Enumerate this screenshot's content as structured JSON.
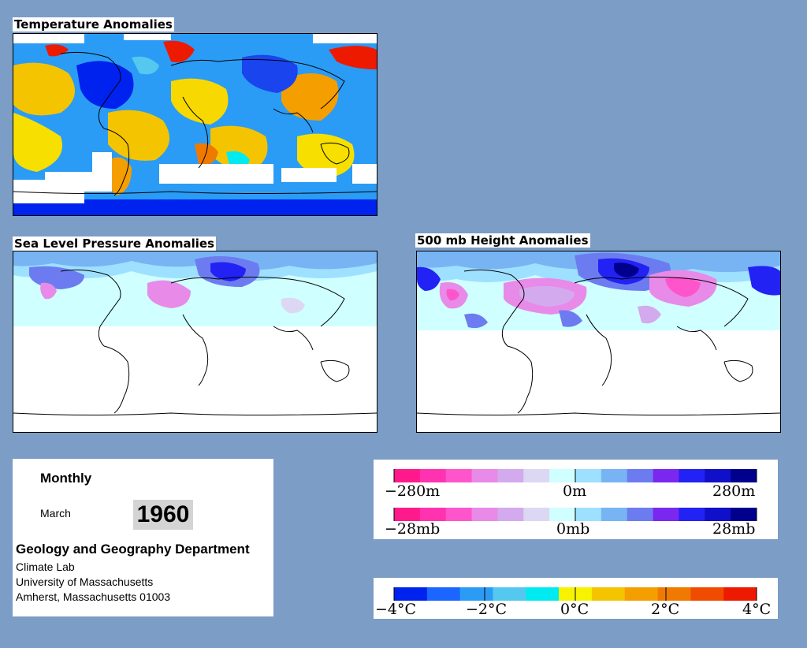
{
  "maps": {
    "temperature": {
      "title": "Temperature Anomalies"
    },
    "slp": {
      "title": "Sea Level Pressure Anomalies"
    },
    "height500": {
      "title": "500 mb Height Anomalies"
    }
  },
  "info": {
    "period": "Monthly",
    "month": "March",
    "year": "1960",
    "department": "Geology and Geography Department",
    "address_lines": [
      "Climate Lab",
      "University of Massachusetts",
      "Amherst, Massachusetts 01003"
    ]
  },
  "legends": {
    "height": {
      "labels": [
        "−280m",
        "0m",
        "280m"
      ]
    },
    "pressure": {
      "labels": [
        "−28mb",
        "0mb",
        "28mb"
      ]
    },
    "temperature": {
      "labels": [
        "−4°C",
        "−2°C",
        "0°C",
        "2°C",
        "4°C"
      ]
    }
  },
  "colors": {
    "background": "#7b9dc6",
    "anomaly_scale": [
      "#ff1a8c",
      "#ff33b0",
      "#ff55cc",
      "#e88ae8",
      "#d4aaee",
      "#dcd8f4",
      "#cfffff",
      "#9ee0ff",
      "#78b4f4",
      "#6c7cf0",
      "#7a28f0",
      "#2222f4",
      "#1010c8",
      "#00008c"
    ],
    "temperature_scale": [
      "#0022ee",
      "#1a66ff",
      "#2a9cf6",
      "#55c8f0",
      "#00eaf2",
      "#f7f300",
      "#f5c400",
      "#f59e00",
      "#f07a00",
      "#f04c00",
      "#ee1a00"
    ]
  }
}
